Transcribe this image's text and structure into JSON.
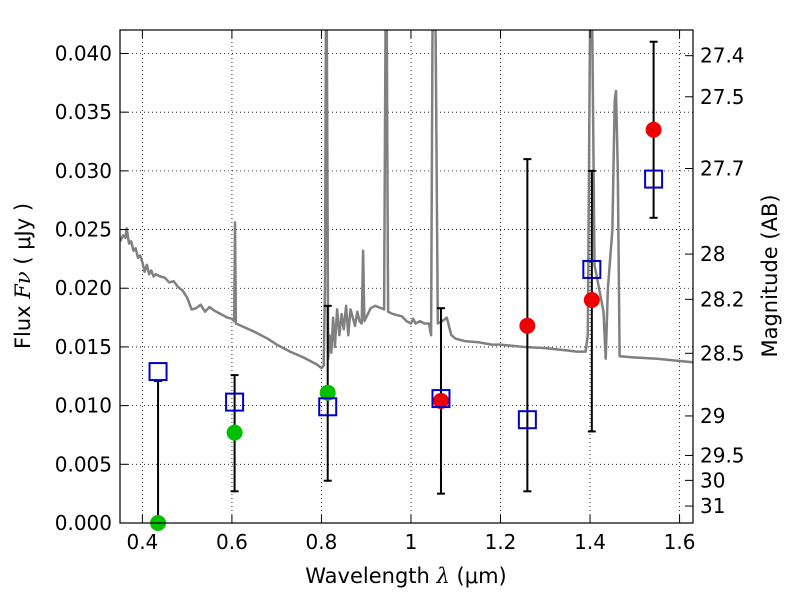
{
  "chart_data": {
    "type": "scatter",
    "title": "",
    "xlabel": "Wavelength",
    "xlabel_symbol": "λ",
    "xlabel_unit": "(μm)",
    "ylabel": "Flux",
    "ylabel_symbol": "Fν",
    "ylabel_unit": "( μJy )",
    "y2label": "Magnitude (AB)",
    "xlim": [
      0.35,
      1.63
    ],
    "ylim": [
      0.0,
      0.042
    ],
    "grid": true,
    "x_ticks": [
      {
        "value": 0.4,
        "label": "0.4"
      },
      {
        "value": 0.6,
        "label": "0.6"
      },
      {
        "value": 0.8,
        "label": "0.8"
      },
      {
        "value": 1.0,
        "label": "1"
      },
      {
        "value": 1.2,
        "label": "1.2"
      },
      {
        "value": 1.4,
        "label": "1.4"
      },
      {
        "value": 1.6,
        "label": "1.6"
      }
    ],
    "y_ticks": [
      {
        "value": 0.0,
        "label": "0.000"
      },
      {
        "value": 0.005,
        "label": "0.005"
      },
      {
        "value": 0.01,
        "label": "0.010"
      },
      {
        "value": 0.015,
        "label": "0.015"
      },
      {
        "value": 0.02,
        "label": "0.020"
      },
      {
        "value": 0.025,
        "label": "0.025"
      },
      {
        "value": 0.03,
        "label": "0.030"
      },
      {
        "value": 0.035,
        "label": "0.035"
      },
      {
        "value": 0.04,
        "label": "0.040"
      }
    ],
    "y2_ticks": [
      {
        "value": 27.4,
        "label": "27.4"
      },
      {
        "value": 27.5,
        "label": "27.5"
      },
      {
        "value": 27.7,
        "label": "27.7"
      },
      {
        "value": 28,
        "label": "28"
      },
      {
        "value": 28.2,
        "label": "28.2"
      },
      {
        "value": 28.5,
        "label": "28.5"
      },
      {
        "value": 29,
        "label": "29"
      },
      {
        "value": 29.5,
        "label": "29.5"
      },
      {
        "value": 30,
        "label": "30"
      },
      {
        "value": 31,
        "label": "31"
      }
    ],
    "colors": {
      "model": "#808080",
      "model_squares": "#0000cc",
      "observed_green": "#00c000",
      "observed_red": "#ee0000",
      "errorbar": "#000000"
    },
    "model_spectrum": [
      [
        0.35,
        0.024
      ],
      [
        0.357,
        0.0245
      ],
      [
        0.362,
        0.0243
      ],
      [
        0.365,
        0.0251
      ],
      [
        0.37,
        0.0238
      ],
      [
        0.375,
        0.024
      ],
      [
        0.38,
        0.0232
      ],
      [
        0.385,
        0.0234
      ],
      [
        0.39,
        0.0226
      ],
      [
        0.395,
        0.0228
      ],
      [
        0.4,
        0.0222
      ],
      [
        0.405,
        0.0214
      ],
      [
        0.41,
        0.022
      ],
      [
        0.415,
        0.0212
      ],
      [
        0.42,
        0.0215
      ],
      [
        0.425,
        0.021
      ],
      [
        0.43,
        0.0212
      ],
      [
        0.44,
        0.021
      ],
      [
        0.45,
        0.0209
      ],
      [
        0.46,
        0.0205
      ],
      [
        0.47,
        0.0206
      ],
      [
        0.48,
        0.0201
      ],
      [
        0.49,
        0.0198
      ],
      [
        0.5,
        0.0192
      ],
      [
        0.51,
        0.0182
      ],
      [
        0.52,
        0.0183
      ],
      [
        0.53,
        0.0186
      ],
      [
        0.54,
        0.018
      ],
      [
        0.55,
        0.0184
      ],
      [
        0.56,
        0.0181
      ],
      [
        0.57,
        0.0179
      ],
      [
        0.58,
        0.0177
      ],
      [
        0.59,
        0.0175
      ],
      [
        0.6,
        0.0174
      ],
      [
        0.605,
        0.0172
      ],
      [
        0.607,
        0.0256
      ],
      [
        0.609,
        0.017
      ],
      [
        0.62,
        0.0168
      ],
      [
        0.65,
        0.0163
      ],
      [
        0.68,
        0.0157
      ],
      [
        0.7,
        0.0152
      ],
      [
        0.73,
        0.0146
      ],
      [
        0.76,
        0.0141
      ],
      [
        0.79,
        0.0135
      ],
      [
        0.8,
        0.0132
      ],
      [
        0.805,
        0.0134
      ],
      [
        0.808,
        0.02
      ],
      [
        0.81,
        0.042
      ],
      [
        0.812,
        0.042
      ],
      [
        0.815,
        0.014
      ],
      [
        0.818,
        0.016
      ],
      [
        0.822,
        0.0145
      ],
      [
        0.826,
        0.0175
      ],
      [
        0.83,
        0.015
      ],
      [
        0.835,
        0.0182
      ],
      [
        0.84,
        0.016
      ],
      [
        0.845,
        0.0178
      ],
      [
        0.85,
        0.0165
      ],
      [
        0.855,
        0.0185
      ],
      [
        0.86,
        0.016
      ],
      [
        0.865,
        0.0182
      ],
      [
        0.87,
        0.0175
      ],
      [
        0.875,
        0.0168
      ],
      [
        0.88,
        0.018
      ],
      [
        0.885,
        0.0172
      ],
      [
        0.89,
        0.017
      ],
      [
        0.893,
        0.0232
      ],
      [
        0.896,
        0.0172
      ],
      [
        0.91,
        0.0183
      ],
      [
        0.92,
        0.0185
      ],
      [
        0.94,
        0.0182
      ],
      [
        0.943,
        0.042
      ],
      [
        0.946,
        0.042
      ],
      [
        0.949,
        0.018
      ],
      [
        0.96,
        0.0178
      ],
      [
        0.98,
        0.0176
      ],
      [
        0.99,
        0.0172
      ],
      [
        1.0,
        0.017
      ],
      [
        1.005,
        0.0174
      ],
      [
        1.01,
        0.017
      ],
      [
        1.02,
        0.0172
      ],
      [
        1.03,
        0.017
      ],
      [
        1.04,
        0.017
      ],
      [
        1.045,
        0.016
      ],
      [
        1.048,
        0.042
      ],
      [
        1.055,
        0.042
      ],
      [
        1.06,
        0.017
      ],
      [
        1.07,
        0.0172
      ],
      [
        1.08,
        0.0175
      ],
      [
        1.09,
        0.016
      ],
      [
        1.1,
        0.0157
      ],
      [
        1.12,
        0.0155
      ],
      [
        1.15,
        0.0154
      ],
      [
        1.18,
        0.0152
      ],
      [
        1.2,
        0.0152
      ],
      [
        1.25,
        0.015
      ],
      [
        1.3,
        0.0149
      ],
      [
        1.35,
        0.0147
      ],
      [
        1.37,
        0.0146
      ],
      [
        1.39,
        0.0146
      ],
      [
        1.395,
        0.016
      ],
      [
        1.4,
        0.042
      ],
      [
        1.405,
        0.042
      ],
      [
        1.41,
        0.022
      ],
      [
        1.42,
        0.02
      ],
      [
        1.43,
        0.018
      ],
      [
        1.435,
        0.014
      ],
      [
        1.44,
        0.02
      ],
      [
        1.45,
        0.025
      ],
      [
        1.455,
        0.036
      ],
      [
        1.458,
        0.0368
      ],
      [
        1.462,
        0.03
      ],
      [
        1.466,
        0.0142
      ],
      [
        1.5,
        0.0141
      ],
      [
        1.55,
        0.014
      ],
      [
        1.6,
        0.0138
      ],
      [
        1.63,
        0.0137
      ]
    ],
    "model_photometry": [
      {
        "x": 0.435,
        "y": 0.0129
      },
      {
        "x": 0.606,
        "y": 0.0103
      },
      {
        "x": 0.814,
        "y": 0.0099
      },
      {
        "x": 1.067,
        "y": 0.0106
      },
      {
        "x": 1.26,
        "y": 0.0088
      },
      {
        "x": 1.404,
        "y": 0.0216
      },
      {
        "x": 1.542,
        "y": 0.0293
      }
    ],
    "observed_photometry": [
      {
        "x": 0.435,
        "y": 0.0,
        "err_low": 0.0,
        "err_high": 0.0121,
        "color": "green"
      },
      {
        "x": 0.606,
        "y": 0.0077,
        "err_low": 0.0027,
        "err_high": 0.0126,
        "color": "green"
      },
      {
        "x": 0.814,
        "y": 0.0111,
        "err_low": 0.0036,
        "err_high": 0.0185,
        "color": "green"
      },
      {
        "x": 1.067,
        "y": 0.0104,
        "err_low": 0.0025,
        "err_high": 0.0183,
        "color": "red"
      },
      {
        "x": 1.26,
        "y": 0.0168,
        "err_low": 0.0027,
        "err_high": 0.031,
        "color": "red"
      },
      {
        "x": 1.404,
        "y": 0.019,
        "err_low": 0.0078,
        "err_high": 0.03,
        "color": "red"
      },
      {
        "x": 1.542,
        "y": 0.0335,
        "err_low": 0.026,
        "err_high": 0.041,
        "color": "red"
      }
    ]
  }
}
